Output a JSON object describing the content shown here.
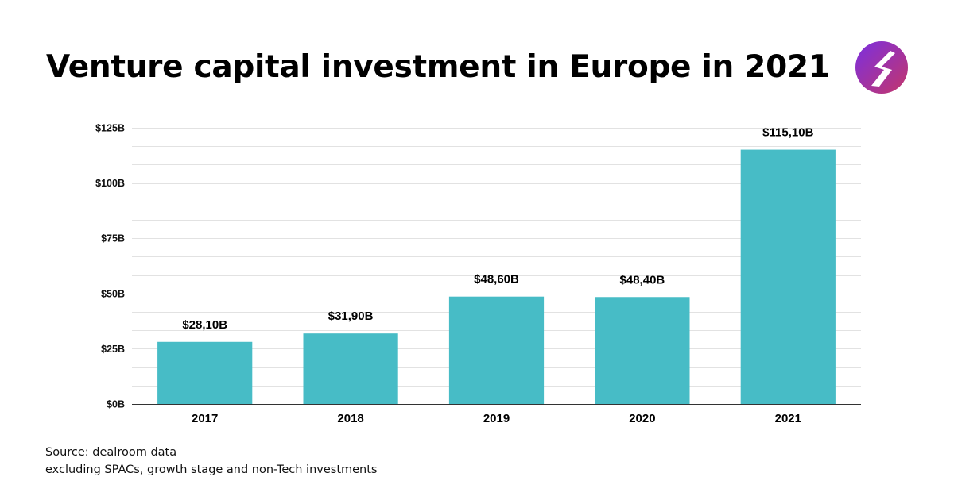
{
  "header": {
    "title": "Venture capital investment in Europe in 2021"
  },
  "logo": {
    "icon": "brand-logo-icon",
    "gradient": [
      "#7b2fe0",
      "#c4366a"
    ]
  },
  "chart_data": {
    "type": "bar",
    "categories": [
      "2017",
      "2018",
      "2019",
      "2020",
      "2021"
    ],
    "values": [
      28.1,
      31.9,
      48.6,
      48.4,
      115.1
    ],
    "data_labels": [
      "$28,10B",
      "$31,90B",
      "$48,60B",
      "$48,40B",
      "$115,10B"
    ],
    "title": "Venture capital investment in Europe in 2021",
    "xlabel": "",
    "ylabel": "",
    "ylim": [
      0,
      125
    ],
    "y_ticks": [
      {
        "value": 0,
        "label": "$0B"
      },
      {
        "value": 25,
        "label": "$25B"
      },
      {
        "value": 50,
        "label": "$50B"
      },
      {
        "value": 75,
        "label": "$75B"
      },
      {
        "value": 100,
        "label": "$100B"
      },
      {
        "value": 125,
        "label": "$125B"
      }
    ],
    "minor_grid_step": 8.333,
    "grid": true,
    "legend": "none",
    "bar_color": "#47bcc6"
  },
  "footer": {
    "source": "Source: dealroom data",
    "note": "excluding SPACs, growth stage and non-Tech investments"
  }
}
